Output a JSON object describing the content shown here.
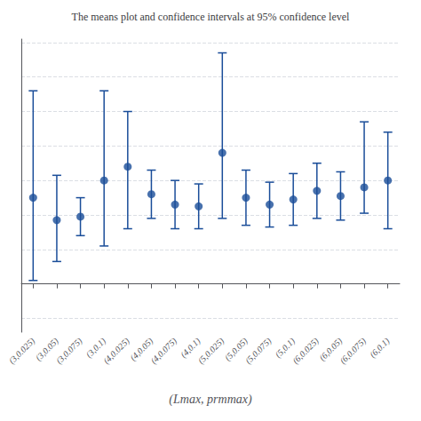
{
  "chart_data": {
    "type": "errorbar",
    "title": "The means plot and confidence intervals at 95% confidence level",
    "xlabel": "(Lmax, prmmax)",
    "categories": [
      "(3,0.025)",
      "(3,0.05)",
      "(3,0.075)",
      "(3,0.1)",
      "(4,0.025)",
      "(4,0.05)",
      "(4,0.075)",
      "(4,0.1)",
      "(5,0.025)",
      "(5,0.05)",
      "(5,0.075)",
      "(5,0.1)",
      "(6,0.025)",
      "(6,0.05)",
      "(6,0.075)",
      "(6,0.1)"
    ],
    "values": [
      0.5,
      0.37,
      0.39,
      0.6,
      0.68,
      0.52,
      0.46,
      0.45,
      0.76,
      0.5,
      0.46,
      0.49,
      0.54,
      0.51,
      0.56,
      0.6
    ],
    "error_low": [
      0.48,
      0.24,
      0.11,
      0.38,
      0.36,
      0.14,
      0.14,
      0.13,
      0.38,
      0.16,
      0.13,
      0.15,
      0.16,
      0.14,
      0.15,
      0.28
    ],
    "error_high": [
      0.62,
      0.26,
      0.11,
      0.52,
      0.32,
      0.14,
      0.14,
      0.13,
      0.58,
      0.16,
      0.13,
      0.15,
      0.16,
      0.14,
      0.38,
      0.28
    ],
    "color": "#1a4d99",
    "marker": "circle",
    "ylim": [
      -0.28,
      1.42
    ],
    "yticks": [
      -0.2,
      0,
      0.2,
      0.4,
      0.6,
      0.8,
      1.0,
      1.2,
      1.4
    ],
    "grid": true,
    "tick_labels": "x"
  }
}
